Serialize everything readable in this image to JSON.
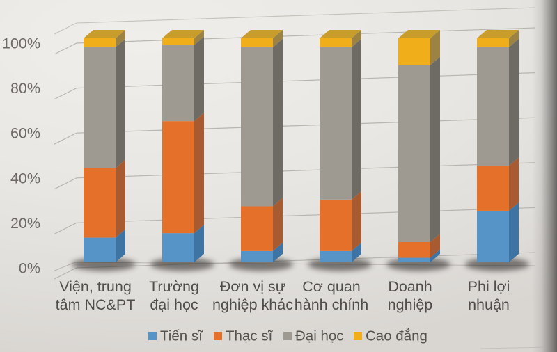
{
  "chart_data": {
    "type": "bar",
    "variant": "3d-100-percent-stacked-column",
    "title": "",
    "xlabel": "",
    "ylabel": "",
    "unit": "%",
    "ylim": [
      0,
      100
    ],
    "grid": true,
    "legend_position": "bottom",
    "categories": [
      "Viện, trung tâm NC&PT",
      "Trường đại học",
      "Đơn vị sự nghiệp khác",
      "Cơ quan hành chính",
      "Doanh nghiệp",
      "Phi lợi nhuận"
    ],
    "category_label_lines": [
      [
        "Viện, trung",
        "tâm NC&PT"
      ],
      [
        "Trường",
        "đại học"
      ],
      [
        "Đơn vị sự",
        "nghiệp khác"
      ],
      [
        "Cơ quan",
        "hành chính"
      ],
      [
        "Doanh",
        "nghiệp"
      ],
      [
        "Phi lợi",
        "nhuận"
      ]
    ],
    "series": [
      {
        "name": "Tiến sĩ",
        "color_key": "tien_si",
        "values": [
          11,
          13,
          5,
          5,
          2,
          23
        ]
      },
      {
        "name": "Thạc sĩ",
        "color_key": "thac_si",
        "values": [
          31,
          50,
          20,
          23,
          7,
          20
        ]
      },
      {
        "name": "Đại học",
        "color_key": "dai_hoc",
        "values": [
          54,
          34,
          71,
          68,
          79,
          53
        ]
      },
      {
        "name": "Cao đẳng",
        "color_key": "cao_dang",
        "values": [
          4,
          3,
          4,
          4,
          12,
          4
        ]
      }
    ],
    "y_axis_ticks": [
      "0%",
      "20%",
      "40%",
      "60%",
      "80%",
      "100%"
    ]
  },
  "colors": {
    "tien_si": {
      "front": "#5694c8",
      "side": "#3d74a3"
    },
    "thac_si": {
      "front": "#e5702a",
      "side": "#a85a30"
    },
    "dai_hoc": {
      "front": "#9e9a92",
      "side": "#6e6b65"
    },
    "cao_dang": {
      "front": "#efae1a",
      "side": "#9d8343"
    },
    "bar_top": "#c99d2b",
    "grid": "#b3b0aa",
    "axis_text": "#6e6b66",
    "xlabel_text": "#504e4b",
    "legend_text": "#57544f",
    "shadow": "#34312d"
  }
}
